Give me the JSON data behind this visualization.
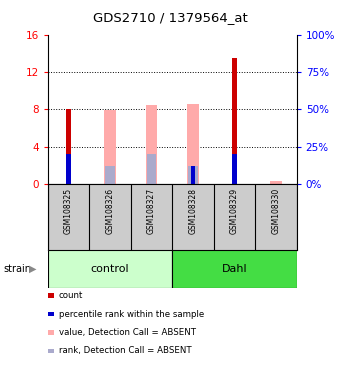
{
  "title": "GDS2710 / 1379564_at",
  "samples": [
    "GSM108325",
    "GSM108326",
    "GSM108327",
    "GSM108328",
    "GSM108329",
    "GSM108330"
  ],
  "groups": [
    {
      "name": "control",
      "samples": [
        0,
        1,
        2
      ],
      "color": "#ccffcc",
      "border_color": "#000000"
    },
    {
      "name": "Dahl",
      "samples": [
        3,
        4,
        5
      ],
      "color": "#44dd44",
      "border_color": "#000000"
    }
  ],
  "ylim_left": [
    0,
    16
  ],
  "ylim_right": [
    0,
    100
  ],
  "yticks_left": [
    0,
    4,
    8,
    12,
    16
  ],
  "ytick_labels_left": [
    "0",
    "4",
    "8",
    "12",
    "16"
  ],
  "yticks_right": [
    0,
    25,
    50,
    75,
    100
  ],
  "ytick_labels_right": [
    "0%",
    "25%",
    "50%",
    "75%",
    "100%"
  ],
  "count_values": [
    8.0,
    0,
    0,
    0,
    13.5,
    0
  ],
  "percentile_values": [
    20.5,
    0,
    0,
    12.5,
    20.5,
    0
  ],
  "absent_value_bars": [
    0,
    7.9,
    8.5,
    8.6,
    0,
    0.4
  ],
  "absent_rank_bars": [
    0,
    12.5,
    20.5,
    12.5,
    0,
    0
  ],
  "color_count": "#cc0000",
  "color_percentile": "#0000cc",
  "color_absent_value": "#ffaaaa",
  "color_absent_rank": "#aaaacc",
  "color_bg_plot": "#ffffff",
  "color_bg_sample": "#cccccc",
  "legend_items": [
    {
      "color": "#cc0000",
      "label": "count"
    },
    {
      "color": "#0000cc",
      "label": "percentile rank within the sample"
    },
    {
      "color": "#ffaaaa",
      "label": "value, Detection Call = ABSENT"
    },
    {
      "color": "#aaaacc",
      "label": "rank, Detection Call = ABSENT"
    }
  ]
}
